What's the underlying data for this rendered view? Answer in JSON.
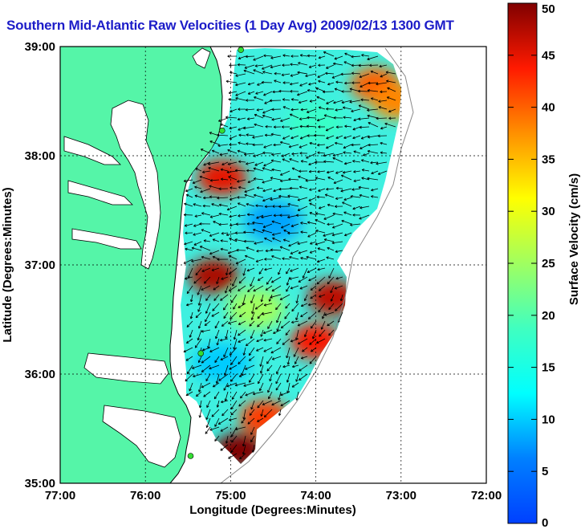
{
  "title": "Southern Mid-Atlantic Raw Velocities (1 Day Avg) 2009/02/13 1300 GMT",
  "xlabel": "Longitude (Degrees:Minutes)",
  "ylabel": "Latitude (Degrees:Minutes)",
  "colorbar_label": "Surface Velocity (cm/s)",
  "x_ticks": [
    "77:00",
    "76:00",
    "75:00",
    "74:00",
    "73:00",
    "72:00"
  ],
  "y_ticks": [
    "39:00",
    "38:00",
    "37:00",
    "36:00",
    "35:00"
  ],
  "colorbar_ticks": [
    "50",
    "45",
    "40",
    "35",
    "30",
    "25",
    "20",
    "15",
    "10",
    "5",
    "0"
  ],
  "colors": {
    "land": "#55f5a8",
    "ocean": "#ffffff",
    "title": "#1c1cc8"
  },
  "map": {
    "lon_range": [
      -77,
      -72
    ],
    "lat_range": [
      35,
      39
    ],
    "velocity_range": [
      0,
      50
    ],
    "colormap": "jet",
    "grid": true,
    "stations": [
      {
        "lon": -74.88,
        "lat": 38.97
      },
      {
        "lon": -75.1,
        "lat": 38.23
      },
      {
        "lon": -75.35,
        "lat": 36.19
      },
      {
        "lon": -75.47,
        "lat": 35.25
      }
    ],
    "features": [
      {
        "lon": -75.1,
        "lat": 37.8,
        "speed": 45
      },
      {
        "lon": -75.2,
        "lat": 36.9,
        "speed": 48
      },
      {
        "lon": -74.7,
        "lat": 36.6,
        "speed": 25
      },
      {
        "lon": -73.8,
        "lat": 36.7,
        "speed": 47
      },
      {
        "lon": -74.0,
        "lat": 36.3,
        "speed": 44
      },
      {
        "lon": -74.6,
        "lat": 35.6,
        "speed": 42
      },
      {
        "lon": -74.9,
        "lat": 35.3,
        "speed": 50
      },
      {
        "lon": -73.3,
        "lat": 38.65,
        "speed": 40
      },
      {
        "lon": -73.05,
        "lat": 38.5,
        "speed": 38
      },
      {
        "lon": -74.5,
        "lat": 37.4,
        "speed": 8
      },
      {
        "lon": -75.1,
        "lat": 36.1,
        "speed": 10
      },
      {
        "lon": -74.0,
        "lat": 38.3,
        "speed": 18
      }
    ]
  }
}
